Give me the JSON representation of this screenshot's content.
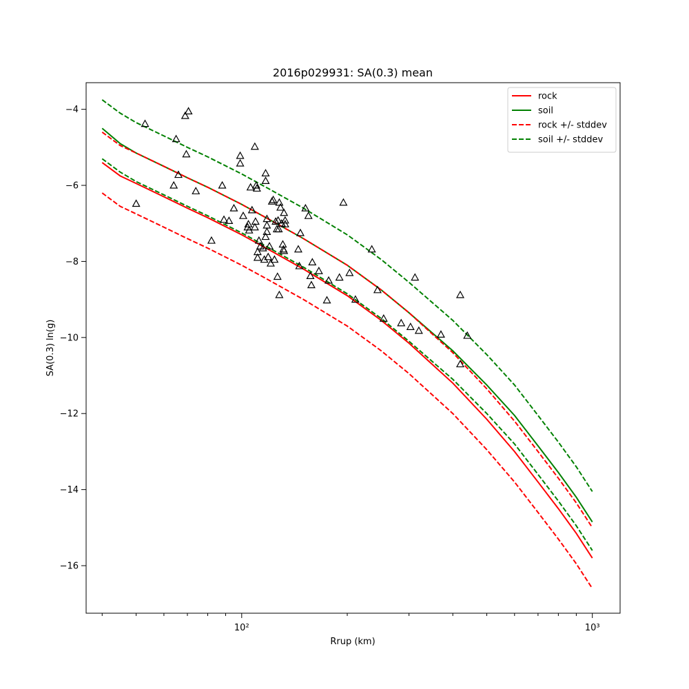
{
  "chart_data": {
    "type": "line",
    "title": "2016p029931: SA(0.3) mean",
    "xlabel": "Rrup (km)",
    "ylabel": "SA(0.3) ln(g)",
    "xscale": "log",
    "xlim": [
      36,
      1200
    ],
    "ylim": [
      -17.25,
      -3.3
    ],
    "x_ticks": [
      100,
      1000
    ],
    "x_tick_labels": [
      "10²",
      "10³"
    ],
    "y_ticks": [
      -16,
      -14,
      -12,
      -10,
      -8,
      -6,
      -4
    ],
    "y_tick_labels": [
      "−16",
      "−14",
      "−12",
      "−10",
      "−8",
      "−6",
      "−4"
    ],
    "grid": false,
    "legend_position": "top-right",
    "x": [
      40,
      45,
      50,
      60,
      70,
      80,
      100,
      120,
      150,
      200,
      250,
      300,
      400,
      500,
      600,
      700,
      800,
      900,
      1000
    ],
    "series": [
      {
        "name": "rock",
        "color": "#ff0000",
        "style": "solid",
        "values": [
          -5.4,
          -5.75,
          -5.95,
          -6.3,
          -6.6,
          -6.85,
          -7.3,
          -7.7,
          -8.2,
          -8.9,
          -9.55,
          -10.15,
          -11.2,
          -12.15,
          -13.0,
          -13.8,
          -14.5,
          -15.15,
          -15.8
        ]
      },
      {
        "name": "soil",
        "color": "#008000",
        "style": "solid",
        "values": [
          -4.5,
          -4.9,
          -5.15,
          -5.5,
          -5.8,
          -6.05,
          -6.5,
          -6.9,
          -7.4,
          -8.1,
          -8.75,
          -9.35,
          -10.35,
          -11.25,
          -12.05,
          -12.85,
          -13.55,
          -14.2,
          -14.85
        ]
      },
      {
        "name": "rock +/- stddev",
        "color": "#ff0000",
        "style": "dashed",
        "values": [
          -4.6,
          -4.95,
          -5.15,
          -5.5,
          -5.8,
          -6.05,
          -6.5,
          -6.9,
          -7.4,
          -8.1,
          -8.75,
          -9.35,
          -10.4,
          -11.35,
          -12.2,
          -13.0,
          -13.7,
          -14.35,
          -15.0
        ]
      },
      {
        "name": "",
        "color": "#ff0000",
        "style": "dashed",
        "values": [
          -6.2,
          -6.55,
          -6.75,
          -7.1,
          -7.4,
          -7.65,
          -8.1,
          -8.5,
          -9.0,
          -9.7,
          -10.35,
          -10.95,
          -12.0,
          -12.95,
          -13.8,
          -14.6,
          -15.3,
          -15.95,
          -16.6
        ]
      },
      {
        "name": "soil +/- stddev",
        "color": "#008000",
        "style": "dashed",
        "values": [
          -3.75,
          -4.1,
          -4.35,
          -4.7,
          -5.0,
          -5.25,
          -5.7,
          -6.1,
          -6.6,
          -7.3,
          -7.95,
          -8.55,
          -9.55,
          -10.45,
          -11.25,
          -12.05,
          -12.75,
          -13.4,
          -14.05
        ]
      },
      {
        "name": "",
        "color": "#008000",
        "style": "dashed",
        "values": [
          -5.3,
          -5.65,
          -5.9,
          -6.25,
          -6.55,
          -6.8,
          -7.25,
          -7.65,
          -8.15,
          -8.85,
          -9.5,
          -10.1,
          -11.1,
          -12.0,
          -12.8,
          -13.6,
          -14.3,
          -14.95,
          -15.6
        ]
      }
    ],
    "observations": {
      "marker": "open-triangle",
      "color": "#000000",
      "points": [
        [
          50,
          -6.48
        ],
        [
          53,
          -4.38
        ],
        [
          64,
          -6.0
        ],
        [
          65,
          -4.78
        ],
        [
          66,
          -5.72
        ],
        [
          69,
          -4.17
        ],
        [
          69.5,
          -5.18
        ],
        [
          70.5,
          -4.05
        ],
        [
          74,
          -6.15
        ],
        [
          82,
          -7.45
        ],
        [
          88,
          -6.0
        ],
        [
          89,
          -6.9
        ],
        [
          92,
          -6.93
        ],
        [
          95,
          -6.6
        ],
        [
          99,
          -5.22
        ],
        [
          99,
          -5.42
        ],
        [
          101,
          -6.8
        ],
        [
          104,
          -7.1
        ],
        [
          105,
          -7.18
        ],
        [
          104.5,
          -7.02
        ],
        [
          106,
          -6.05
        ],
        [
          107,
          -6.65
        ],
        [
          109,
          -4.98
        ],
        [
          109,
          -7.1
        ],
        [
          109.5,
          -6.95
        ],
        [
          110,
          -6.0
        ],
        [
          110.5,
          -6.08
        ],
        [
          111,
          -7.75
        ],
        [
          111,
          -7.9
        ],
        [
          112,
          -7.45
        ],
        [
          113,
          -7.6
        ],
        [
          115,
          -7.65
        ],
        [
          116,
          -7.95
        ],
        [
          117,
          -5.68
        ],
        [
          117,
          -5.88
        ],
        [
          117,
          -7.35
        ],
        [
          118,
          -6.88
        ],
        [
          118,
          -7.05
        ],
        [
          118,
          -7.22
        ],
        [
          119,
          -7.88
        ],
        [
          120,
          -7.6
        ],
        [
          121,
          -8.05
        ],
        [
          122,
          -6.42
        ],
        [
          123,
          -6.38
        ],
        [
          124,
          -7.95
        ],
        [
          125,
          -6.95
        ],
        [
          126,
          -7.15
        ],
        [
          126.5,
          -8.4
        ],
        [
          127,
          -6.92
        ],
        [
          127.5,
          -7.15
        ],
        [
          128,
          -8.88
        ],
        [
          128,
          -6.45
        ],
        [
          129,
          -6.58
        ],
        [
          130,
          -7.0
        ],
        [
          131,
          -7.55
        ],
        [
          132,
          -6.72
        ],
        [
          131.5,
          -7.68
        ],
        [
          132,
          -7.72
        ],
        [
          133,
          -6.92
        ],
        [
          133,
          -7.02
        ],
        [
          145,
          -7.68
        ],
        [
          146,
          -8.12
        ],
        [
          147,
          -7.25
        ],
        [
          152,
          -6.6
        ],
        [
          155,
          -6.8
        ],
        [
          157,
          -8.38
        ],
        [
          158,
          -8.62
        ],
        [
          159,
          -8.02
        ],
        [
          166,
          -8.25
        ],
        [
          175,
          -9.02
        ],
        [
          177,
          -8.5
        ],
        [
          190,
          -8.42
        ],
        [
          195,
          -6.45
        ],
        [
          203,
          -8.3
        ],
        [
          211,
          -9.0
        ],
        [
          235,
          -7.68
        ],
        [
          244,
          -8.75
        ],
        [
          254,
          -9.5
        ],
        [
          285,
          -9.62
        ],
        [
          303,
          -9.72
        ],
        [
          312,
          -8.42
        ],
        [
          320,
          -9.82
        ],
        [
          370,
          -9.92
        ],
        [
          420,
          -8.88
        ],
        [
          420,
          -10.7
        ],
        [
          440,
          -9.95
        ]
      ]
    }
  }
}
